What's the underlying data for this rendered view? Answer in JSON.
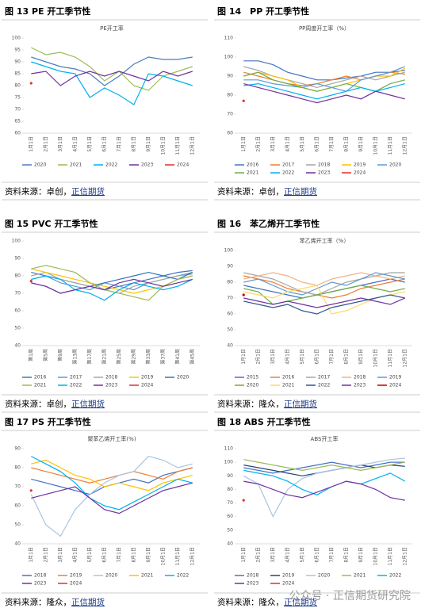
{
  "figures": [
    {
      "caption": "图 13 PE 开工季节性",
      "source_prefix": "资料来源：卓创，",
      "source_link": "正信期货"
    },
    {
      "caption": "图 14　PP 开工季节性",
      "source_prefix": "资料来源：卓创，",
      "source_link": "正信期货"
    },
    {
      "caption": "图 15 PVC 开工季节性",
      "source_prefix": "资料来源：卓创，",
      "source_link": "正信期货"
    },
    {
      "caption": "图 16　苯乙烯开工季节性",
      "source_prefix": "资料来源：隆众，",
      "source_link": "正信期货"
    },
    {
      "caption": "图 17 PS 开工季节性",
      "source_prefix": "资料来源：隆众，",
      "source_link": "正信期货"
    },
    {
      "caption": "图 18 ABS 开工季节性",
      "source_prefix": "资料来源：隆众，",
      "source_link": "正信期货"
    }
  ],
  "watermark": "公众号 · 正信期货研究院",
  "chart_data": [
    {
      "type": "line",
      "title": "PE开工率",
      "ylim": [
        60,
        100
      ],
      "yticks": [
        60,
        65,
        70,
        75,
        80,
        85,
        90,
        95,
        100
      ],
      "categories": [
        "1月1日",
        "2月1日",
        "3月1日",
        "4月1日",
        "5月1日",
        "6月1日",
        "7月1日",
        "8月1日",
        "9月1日",
        "10月1日",
        "11月1日",
        "12月1日"
      ],
      "series": [
        {
          "name": "2020",
          "color": "#4a7ebb",
          "values": [
            92,
            90,
            88,
            87,
            85,
            80,
            84,
            89,
            92,
            91,
            91,
            92
          ]
        },
        {
          "name": "2021",
          "color": "#9bbb59",
          "values": [
            96,
            93,
            94,
            92,
            88,
            82,
            86,
            80,
            78,
            84,
            86,
            88
          ]
        },
        {
          "name": "2022",
          "color": "#00b0f0",
          "values": [
            90,
            88,
            86,
            85,
            75,
            79,
            76,
            72,
            85,
            84,
            82,
            80
          ]
        },
        {
          "name": "2023",
          "color": "#7030a0",
          "values": [
            85,
            86,
            80,
            84,
            86,
            84,
            86,
            84,
            82,
            86,
            84,
            86
          ]
        },
        {
          "name": "2024",
          "color": "#e03030",
          "values": [
            81,
            null,
            null,
            null,
            null,
            null,
            null,
            null,
            null,
            null,
            null,
            null
          ]
        }
      ]
    },
    {
      "type": "line",
      "title": "PP周度开工率（%）",
      "ylim": [
        60,
        110
      ],
      "yticks": [
        60,
        70,
        80,
        90,
        100,
        110
      ],
      "categories": [
        "1月1日",
        "2月1日",
        "3月1日",
        "4月1日",
        "5月1日",
        "6月1日",
        "7月1日",
        "8月1日",
        "9月1日",
        "10月1日",
        "11月1日",
        "12月1日"
      ],
      "series": [
        {
          "name": "2016",
          "color": "#4472c4",
          "values": [
            98,
            98,
            96,
            92,
            90,
            88,
            88,
            89,
            90,
            92,
            92,
            93
          ]
        },
        {
          "name": "2017",
          "color": "#ed7d31",
          "values": [
            92,
            90,
            88,
            86,
            85,
            86,
            88,
            90,
            88,
            90,
            92,
            91
          ]
        },
        {
          "name": "2018",
          "color": "#a5a5a5",
          "values": [
            95,
            93,
            90,
            88,
            86,
            84,
            86,
            88,
            90,
            88,
            90,
            92
          ]
        },
        {
          "name": "2019",
          "color": "#ffc000",
          "values": [
            90,
            92,
            90,
            88,
            84,
            82,
            84,
            86,
            88,
            90,
            90,
            94
          ]
        },
        {
          "name": "2020",
          "color": "#5b9bd5",
          "values": [
            88,
            88,
            86,
            85,
            84,
            86,
            84,
            82,
            88,
            90,
            92,
            95
          ]
        },
        {
          "name": "2021",
          "color": "#70ad47",
          "values": [
            90,
            92,
            88,
            86,
            84,
            82,
            84,
            86,
            84,
            82,
            86,
            88
          ]
        },
        {
          "name": "2022",
          "color": "#00b0f0",
          "values": [
            85,
            86,
            84,
            82,
            80,
            78,
            80,
            82,
            84,
            82,
            84,
            86
          ]
        },
        {
          "name": "2023",
          "color": "#7030a0",
          "values": [
            86,
            84,
            82,
            80,
            78,
            76,
            78,
            80,
            78,
            82,
            80,
            78
          ]
        },
        {
          "name": "2024",
          "color": "#e03030",
          "values": [
            77,
            null,
            null,
            null,
            null,
            null,
            null,
            null,
            null,
            null,
            null,
            null
          ]
        }
      ]
    },
    {
      "type": "line",
      "ylim": [
        40,
        100
      ],
      "yticks": [
        40,
        50,
        60,
        70,
        80,
        90,
        100
      ],
      "categories": [
        "第1周",
        "第5周",
        "第9周",
        "第13周",
        "第17周",
        "第21周",
        "第25周",
        "第29周",
        "第33周",
        "第37周",
        "第41周",
        "第45周"
      ],
      "series": [
        {
          "name": "2016",
          "color": "#4472c4",
          "values": [
            82,
            80,
            78,
            76,
            74,
            72,
            74,
            76,
            78,
            80,
            82,
            83
          ]
        },
        {
          "name": "2017",
          "color": "#5b9bd5",
          "values": [
            78,
            80,
            76,
            74,
            72,
            76,
            74,
            72,
            76,
            78,
            80,
            82
          ]
        },
        {
          "name": "2018",
          "color": "#a5a5a5",
          "values": [
            80,
            82,
            78,
            76,
            74,
            72,
            70,
            74,
            76,
            78,
            80,
            81
          ]
        },
        {
          "name": "2019",
          "color": "#ffc000",
          "values": [
            84,
            82,
            80,
            78,
            76,
            74,
            72,
            70,
            72,
            74,
            78,
            80
          ]
        },
        {
          "name": "2020",
          "color": "#2e75b6",
          "values": [
            76,
            74,
            70,
            72,
            74,
            76,
            78,
            80,
            82,
            80,
            78,
            82
          ]
        },
        {
          "name": "2021",
          "color": "#9bbb59",
          "values": [
            84,
            86,
            84,
            82,
            76,
            72,
            70,
            68,
            66,
            74,
            78,
            80
          ]
        },
        {
          "name": "2022",
          "color": "#00b0f0",
          "values": [
            78,
            80,
            78,
            72,
            70,
            66,
            72,
            76,
            74,
            72,
            74,
            78
          ]
        },
        {
          "name": "2023",
          "color": "#7030a0",
          "values": [
            76,
            74,
            70,
            72,
            74,
            72,
            76,
            78,
            76,
            74,
            76,
            78
          ]
        },
        {
          "name": "2024",
          "color": "#e03030",
          "values": [
            77,
            null,
            null,
            null,
            null,
            null,
            null,
            null,
            null,
            null,
            null,
            null
          ]
        }
      ]
    },
    {
      "type": "line",
      "title": "苯乙烯开工率（%）",
      "ylim": [
        40,
        100
      ],
      "yticks": [
        40,
        50,
        60,
        70,
        80,
        90,
        100
      ],
      "categories": [
        "1月1日",
        "2月1日",
        "3月1日",
        "4月1日",
        "5月1日",
        "6月1日",
        "7月1日",
        "8月1日",
        "9月1日",
        "10月1日",
        "11月1日",
        "12月1日"
      ],
      "series": [
        {
          "name": "2015",
          "color": "#4472c4",
          "values": [
            78,
            76,
            74,
            72,
            70,
            72,
            74,
            76,
            78,
            80,
            82,
            80
          ]
        },
        {
          "name": "2016",
          "color": "#ed7d31",
          "values": [
            84,
            82,
            80,
            76,
            74,
            72,
            70,
            72,
            76,
            78,
            80,
            82
          ]
        },
        {
          "name": "2017",
          "color": "#a5a5a5",
          "values": [
            86,
            84,
            82,
            78,
            74,
            72,
            76,
            80,
            82,
            84,
            86,
            86
          ]
        },
        {
          "name": "2018",
          "color": "#f4b183",
          "values": [
            82,
            84,
            86,
            84,
            80,
            78,
            82,
            84,
            86,
            84,
            82,
            84
          ]
        },
        {
          "name": "2019",
          "color": "#5b9bd5",
          "values": [
            80,
            82,
            78,
            74,
            72,
            76,
            80,
            78,
            82,
            86,
            84,
            82
          ]
        },
        {
          "name": "2020",
          "color": "#70ad47",
          "values": [
            76,
            74,
            66,
            68,
            70,
            72,
            74,
            76,
            78,
            76,
            74,
            76
          ]
        },
        {
          "name": "2021",
          "color": "#ffd966",
          "values": [
            74,
            72,
            70,
            74,
            76,
            78,
            60,
            62,
            66,
            70,
            72,
            74
          ]
        },
        {
          "name": "2022",
          "color": "#2f5597",
          "values": [
            68,
            66,
            64,
            66,
            62,
            60,
            64,
            66,
            68,
            70,
            72,
            70
          ]
        },
        {
          "name": "2023",
          "color": "#7030a0",
          "values": [
            70,
            68,
            66,
            68,
            66,
            64,
            66,
            68,
            70,
            68,
            66,
            70
          ]
        },
        {
          "name": "2024",
          "color": "#c00000",
          "values": [
            72,
            null,
            null,
            null,
            null,
            null,
            null,
            null,
            null,
            null,
            null,
            null
          ]
        }
      ]
    },
    {
      "type": "line",
      "title": "聚苯乙烯开工率(%)",
      "ylim": [
        40,
        90
      ],
      "yticks": [
        40,
        50,
        60,
        70,
        80,
        90
      ],
      "categories": [
        "1月1日",
        "2月1日",
        "3月1日",
        "4月1日",
        "5月1日",
        "6月1日",
        "7月1日",
        "8月1日",
        "9月1日",
        "10月1日",
        "11月1日",
        "12月1日"
      ],
      "series": [
        {
          "name": "2018",
          "color": "#4472c4",
          "values": [
            74,
            72,
            70,
            68,
            66,
            70,
            72,
            74,
            72,
            76,
            78,
            80
          ]
        },
        {
          "name": "2019",
          "color": "#ed7d31",
          "values": [
            80,
            78,
            76,
            74,
            72,
            74,
            76,
            78,
            76,
            74,
            78,
            80
          ]
        },
        {
          "name": "2020",
          "color": "#a9c4e0",
          "values": [
            66,
            50,
            44,
            58,
            66,
            72,
            76,
            78,
            86,
            84,
            80,
            82
          ]
        },
        {
          "name": "2021",
          "color": "#ffc000",
          "values": [
            82,
            84,
            80,
            76,
            74,
            70,
            72,
            70,
            68,
            72,
            74,
            76
          ]
        },
        {
          "name": "2022",
          "color": "#00b0f0",
          "values": [
            86,
            82,
            78,
            72,
            64,
            60,
            58,
            62,
            66,
            70,
            74,
            72
          ]
        },
        {
          "name": "2023",
          "color": "#7030a0",
          "values": [
            64,
            66,
            68,
            70,
            64,
            58,
            56,
            60,
            64,
            68,
            70,
            72
          ]
        },
        {
          "name": "2024",
          "color": "#e03030",
          "values": [
            68,
            null,
            null,
            null,
            null,
            null,
            null,
            null,
            null,
            null,
            null,
            null
          ]
        }
      ]
    },
    {
      "type": "line",
      "title": "ABS开工率",
      "ylim": [
        40,
        110
      ],
      "yticks": [
        40,
        50,
        60,
        70,
        80,
        90,
        100,
        110
      ],
      "categories": [
        "1月1日",
        "2月1日",
        "3月1日",
        "4月1日",
        "5月1日",
        "6月1日",
        "7月1日",
        "8月1日",
        "9月1日",
        "10月1日",
        "11月1日",
        "12月1日"
      ],
      "series": [
        {
          "name": "2018",
          "color": "#4472c4",
          "values": [
            96,
            94,
            92,
            94,
            96,
            98,
            100,
            98,
            96,
            98,
            100,
            100
          ]
        },
        {
          "name": "2019",
          "color": "#264478",
          "values": [
            98,
            96,
            94,
            92,
            90,
            92,
            94,
            96,
            98,
            96,
            98,
            97
          ]
        },
        {
          "name": "2020",
          "color": "#a9c4e0",
          "values": [
            90,
            84,
            60,
            80,
            88,
            92,
            94,
            96,
            98,
            100,
            102,
            103
          ]
        },
        {
          "name": "2021",
          "color": "#9bbb59",
          "values": [
            102,
            100,
            98,
            96,
            94,
            96,
            98,
            96,
            94,
            96,
            98,
            100
          ]
        },
        {
          "name": "2022",
          "color": "#00b0f0",
          "values": [
            94,
            92,
            90,
            86,
            80,
            76,
            82,
            86,
            84,
            88,
            92,
            86
          ]
        },
        {
          "name": "2023",
          "color": "#7030a0",
          "values": [
            86,
            84,
            80,
            76,
            74,
            78,
            82,
            86,
            84,
            80,
            74,
            72
          ]
        },
        {
          "name": "2024",
          "color": "#e03030",
          "values": [
            72,
            null,
            null,
            null,
            null,
            null,
            null,
            null,
            null,
            null,
            null,
            null
          ]
        }
      ]
    }
  ]
}
